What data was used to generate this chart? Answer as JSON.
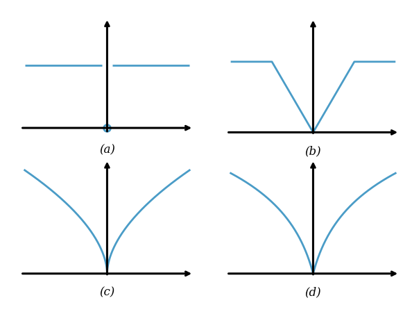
{
  "line_color": "#4a9cc7",
  "axis_color": "#000000",
  "label_a": "(a)",
  "label_b": "(b)",
  "label_c": "(c)",
  "label_d": "(d)",
  "label_fontsize": 12,
  "background_color": "#ffffff",
  "line_width": 2.0,
  "axis_lw": 2.2,
  "arrow_ms": 10
}
